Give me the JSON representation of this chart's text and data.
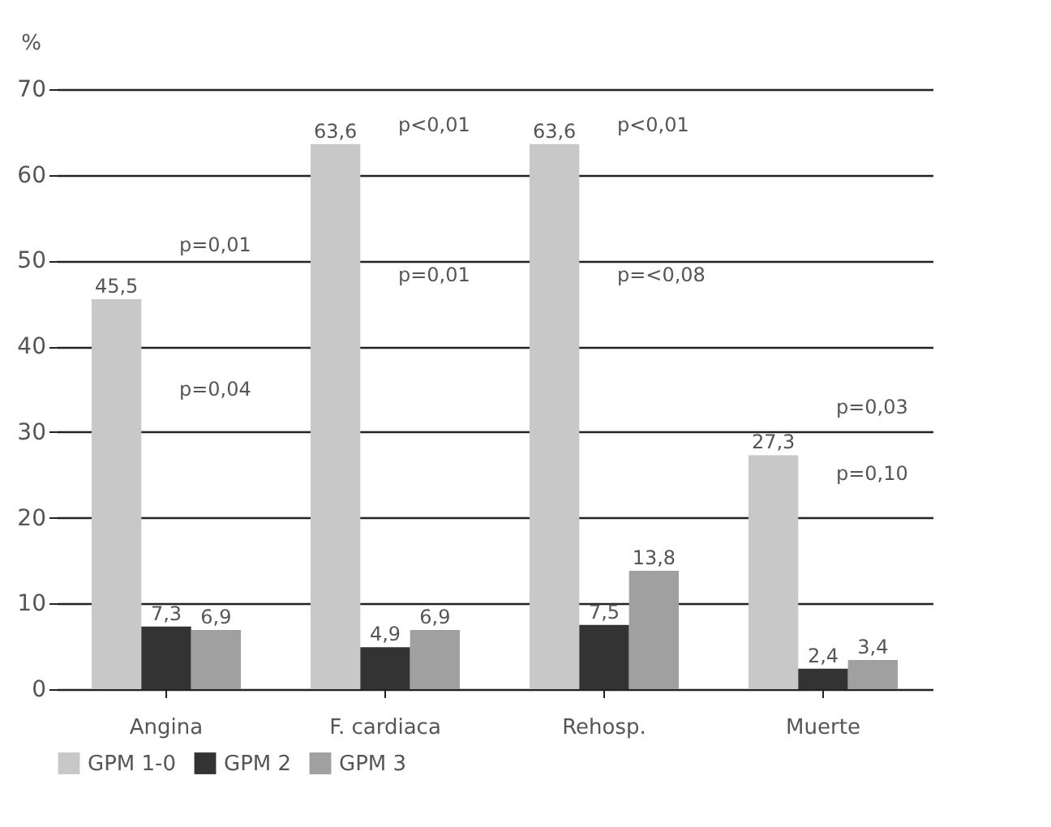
{
  "chart_data": {
    "type": "bar",
    "ylabel": "%",
    "categories": [
      "Angina",
      "F. cardiaca",
      "Rehosp.",
      "Muerte"
    ],
    "series": [
      {
        "name": "GPM 1-0",
        "color": "#c8c8c8",
        "values": [
          45.5,
          63.6,
          63.6,
          27.3
        ],
        "value_labels": [
          "45,5",
          "63,6",
          "63,6",
          "27,3"
        ]
      },
      {
        "name": "GPM 2",
        "color": "#333333",
        "values": [
          7.3,
          4.9,
          7.5,
          2.4
        ],
        "value_labels": [
          "7,3",
          "4,9",
          "7,5",
          "2,4"
        ]
      },
      {
        "name": "GPM 3",
        "color": "#a0a0a0",
        "values": [
          6.9,
          6.9,
          13.8,
          3.4
        ],
        "value_labels": [
          "6,9",
          "6,9",
          "13,8",
          "3,4"
        ]
      }
    ],
    "ylim": [
      0,
      70
    ],
    "yticks": [
      0,
      10,
      20,
      30,
      40,
      50,
      60,
      70
    ],
    "grid": "y",
    "legend": "bottom",
    "annotations": [
      "p=0,01",
      "p=0,04",
      "p<0,01",
      "p=0,01",
      "p<0,01",
      "p=<0,08",
      "p=0,03",
      "p=0,10"
    ]
  }
}
